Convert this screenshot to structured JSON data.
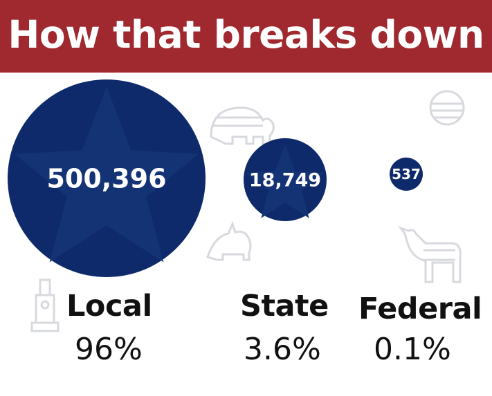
{
  "header": {
    "title": "How that breaks down"
  },
  "colors": {
    "header": "#a0282f",
    "bubble": "#0e2a6b",
    "decor": "#d7d9de"
  },
  "chart_data": {
    "type": "bubble",
    "title": "How that breaks down",
    "categories": [
      "Local",
      "State",
      "Federal"
    ],
    "values": [
      500396,
      18749,
      537
    ],
    "value_labels": [
      "500,396",
      "18,749",
      "537"
    ],
    "percent_labels": [
      "96%",
      "3.6%",
      "0.1%"
    ],
    "decorative_icons": [
      "elephant-icon",
      "donkey-icon",
      "flag-circle-icon",
      "monument-icon"
    ]
  }
}
